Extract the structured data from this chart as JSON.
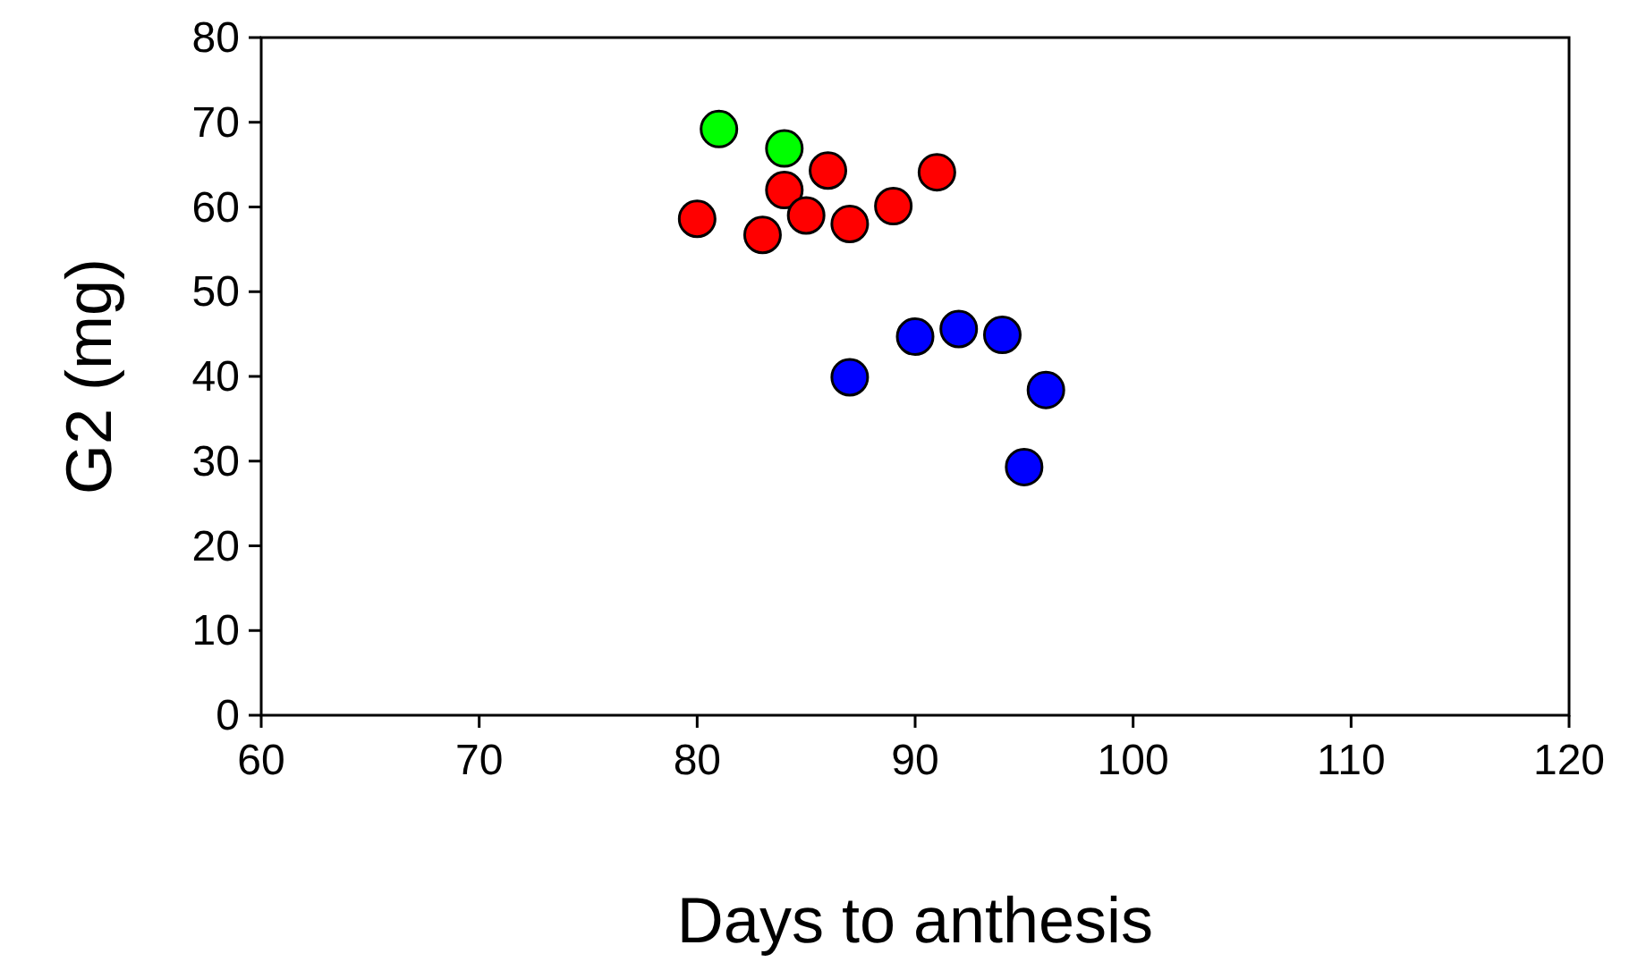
{
  "chart_data": {
    "type": "scatter",
    "xlabel": "Days to anthesis",
    "ylabel": "G2 (mg)",
    "xlim": [
      60,
      120
    ],
    "xticks": [
      60,
      70,
      80,
      90,
      100,
      110,
      120
    ],
    "ylim": [
      0,
      80
    ],
    "yticks": [
      0,
      10,
      20,
      30,
      40,
      50,
      60,
      70,
      80
    ],
    "marker": "circle",
    "series": [
      {
        "color": "#00ff00",
        "x": [
          81,
          84
        ],
        "values": [
          69.2,
          66.9
        ]
      },
      {
        "color": "#ff0000",
        "x": [
          80,
          83,
          84,
          85,
          86,
          87,
          89,
          91
        ],
        "values": [
          58.6,
          56.7,
          62,
          59,
          64.3,
          58,
          60.1,
          64.1
        ]
      },
      {
        "color": "#0000ff",
        "x": [
          87,
          90,
          92,
          94,
          95,
          96
        ],
        "values": [
          39.9,
          44.7,
          45.6,
          44.9,
          29.3,
          38.4
        ]
      }
    ]
  }
}
